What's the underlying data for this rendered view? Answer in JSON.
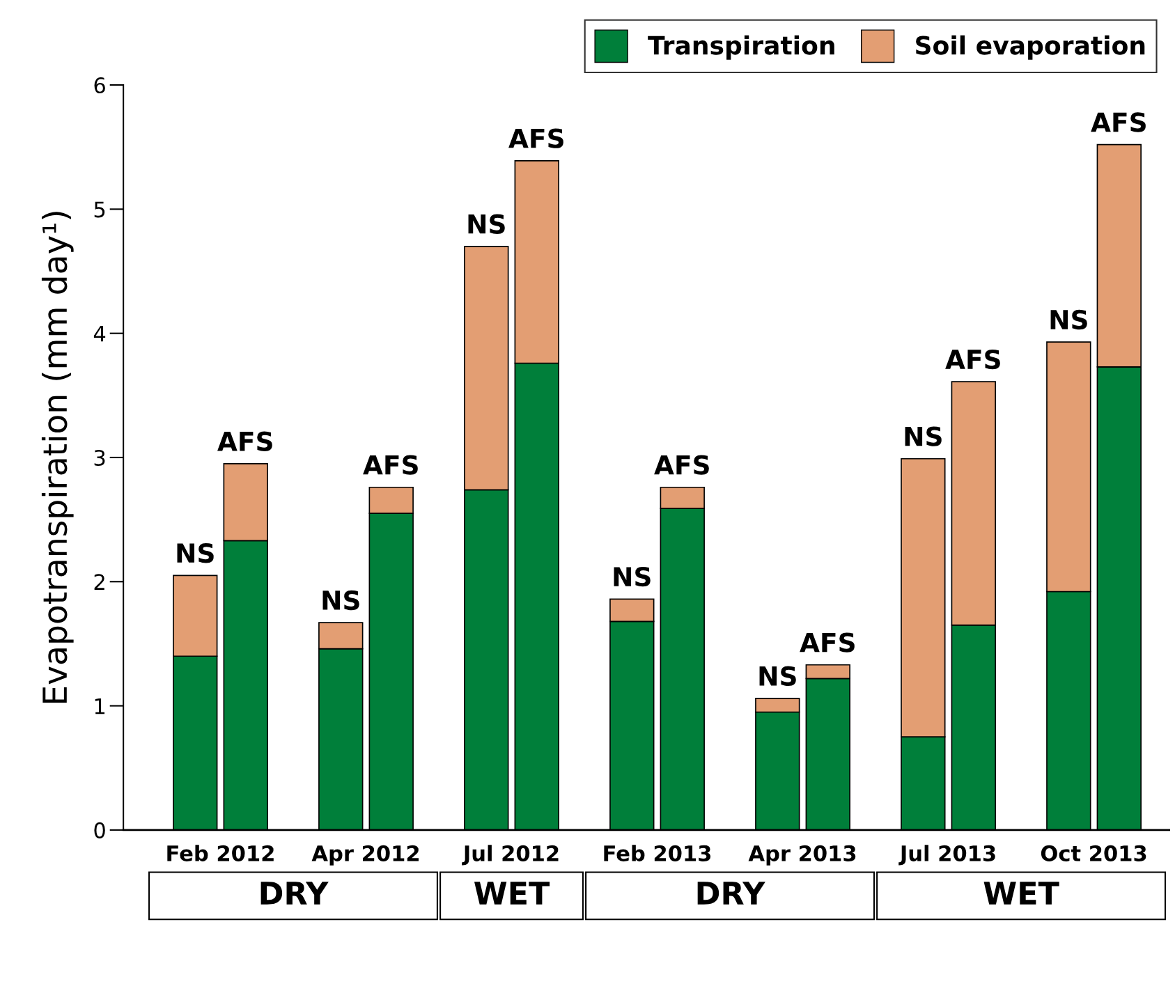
{
  "chart_data": {
    "type": "bar",
    "stacked": true,
    "categories": [
      null,
      null,
      null,
      null,
      null,
      null,
      null,
      null,
      null,
      null,
      null,
      null,
      null,
      null
    ],
    "series": [
      {
        "name": "Transpiration",
        "color": "#007f3a",
        "values": [
          1.4,
          2.33,
          1.46,
          2.55,
          2.74,
          3.76,
          1.68,
          2.59,
          0.95,
          1.22,
          0.75,
          1.65,
          1.92,
          3.73
        ]
      },
      {
        "name": "Soil evaporation",
        "color": "#e39e73",
        "values": [
          0.65,
          0.62,
          0.21,
          0.21,
          1.96,
          1.63,
          0.18,
          0.17,
          0.11,
          0.11,
          2.24,
          1.96,
          2.01,
          1.79
        ],
        "value_labels": [
          "NS",
          "AFS",
          "NS",
          "AFS",
          "NS",
          "AFS",
          "NS",
          "AFS",
          "NS",
          "AFS",
          "NS",
          "AFS",
          "NS",
          "AFS"
        ]
      }
    ],
    "ylabel": "Evapotranspiration (mm day¹)",
    "ylim": [
      0,
      6
    ],
    "yticks": [
      0,
      1,
      2,
      3,
      4,
      5,
      6
    ],
    "annotations": [
      "Feb 2012",
      "Apr 2012",
      "Jul 2012",
      "Feb 2013",
      "Apr 2013",
      "Jul 2013",
      "Oct 2013",
      "DRY",
      "WET",
      "DRY",
      "WET"
    ],
    "legend": "top right",
    "grid": false
  }
}
